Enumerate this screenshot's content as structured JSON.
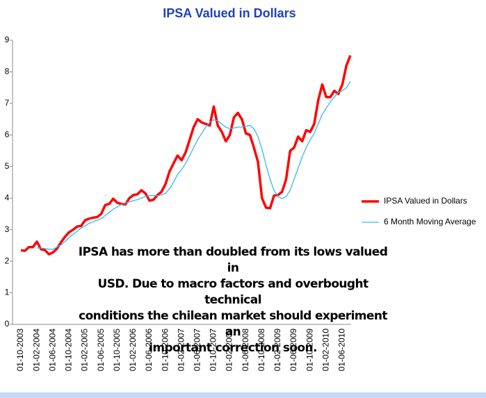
{
  "chart_data": {
    "type": "line",
    "title": "IPSA Valued in Dollars",
    "categories": [
      "01-10-2003",
      null,
      null,
      null,
      "01-02-2004",
      null,
      null,
      null,
      "01-06-2004",
      null,
      null,
      null,
      "01-10-2004",
      null,
      null,
      null,
      "01-02-2005",
      null,
      null,
      null,
      "01-06-2005",
      null,
      null,
      null,
      "01-10-2005",
      null,
      null,
      null,
      "01-02-2006",
      null,
      null,
      null,
      "01-06-2006",
      null,
      null,
      null,
      "01-10-2006",
      null,
      null,
      null,
      "01-02-2007",
      null,
      null,
      null,
      "01-06-2007",
      null,
      null,
      null,
      "01-10-2007",
      null,
      null,
      null,
      "01-02-2008",
      null,
      null,
      null,
      "01-06-2008",
      null,
      null,
      null,
      "01-10-2008",
      null,
      null,
      null,
      "01-02-2009",
      null,
      null,
      null,
      "01-06-2009",
      null,
      null,
      null,
      "01-10-2009",
      null,
      null,
      null,
      "01-02-2010",
      null,
      null,
      null,
      "01-06-2010",
      null,
      null
    ],
    "series": [
      {
        "name": "IPSA Valued in Dollars",
        "color": "#ff0000",
        "values": [
          2.35,
          2.33,
          2.45,
          2.45,
          2.62,
          2.38,
          2.35,
          2.22,
          2.28,
          2.4,
          2.6,
          2.78,
          2.92,
          3.0,
          3.1,
          3.12,
          3.3,
          3.35,
          3.38,
          3.4,
          3.5,
          3.78,
          3.82,
          3.98,
          3.85,
          3.82,
          3.8,
          4.0,
          4.1,
          4.12,
          4.25,
          4.15,
          3.92,
          3.95,
          4.1,
          4.2,
          4.45,
          4.85,
          5.1,
          5.35,
          5.2,
          5.45,
          5.85,
          6.25,
          6.5,
          6.4,
          6.35,
          6.3,
          6.9,
          6.3,
          6.1,
          5.8,
          6.0,
          6.55,
          6.7,
          6.5,
          6.05,
          6.0,
          5.6,
          5.15,
          4.0,
          3.7,
          3.68,
          4.08,
          4.1,
          4.2,
          4.6,
          5.5,
          5.6,
          5.95,
          5.8,
          6.15,
          6.1,
          6.35,
          7.1,
          7.6,
          7.2,
          7.2,
          7.4,
          7.3,
          7.6,
          8.2,
          8.52
        ]
      },
      {
        "name": "6 Month Moving Average",
        "color": "#33bbee",
        "values": [
          null,
          null,
          null,
          null,
          2.42,
          2.42,
          2.4,
          2.38,
          2.38,
          2.45,
          2.52,
          2.62,
          2.75,
          2.85,
          2.95,
          3.05,
          3.12,
          3.2,
          3.25,
          3.3,
          3.35,
          3.45,
          3.55,
          3.65,
          3.72,
          3.8,
          3.85,
          3.88,
          3.92,
          3.95,
          4.0,
          4.05,
          4.08,
          4.08,
          4.08,
          4.1,
          4.15,
          4.3,
          4.5,
          4.75,
          4.9,
          5.1,
          5.35,
          5.6,
          5.85,
          6.05,
          6.25,
          6.4,
          6.48,
          6.45,
          6.35,
          6.25,
          6.2,
          6.22,
          6.25,
          6.25,
          6.28,
          6.3,
          6.2,
          5.95,
          5.55,
          5.05,
          4.6,
          4.25,
          4.05,
          3.98,
          4.05,
          4.25,
          4.6,
          4.95,
          5.3,
          5.6,
          5.85,
          6.05,
          6.35,
          6.65,
          6.85,
          7.05,
          7.2,
          7.35,
          7.4,
          7.5,
          7.7
        ]
      }
    ],
    "ylim": [
      0,
      9
    ],
    "yticks": [
      0,
      1,
      2,
      3,
      4,
      5,
      6,
      7,
      8,
      9
    ],
    "legend": "right",
    "annotation": [
      "IPSA has more than doubled from its lows valued in",
      "USD.  Due to macro factors and overbought technical",
      "conditions the chilean market should experiment an",
      "important correction soon."
    ]
  }
}
